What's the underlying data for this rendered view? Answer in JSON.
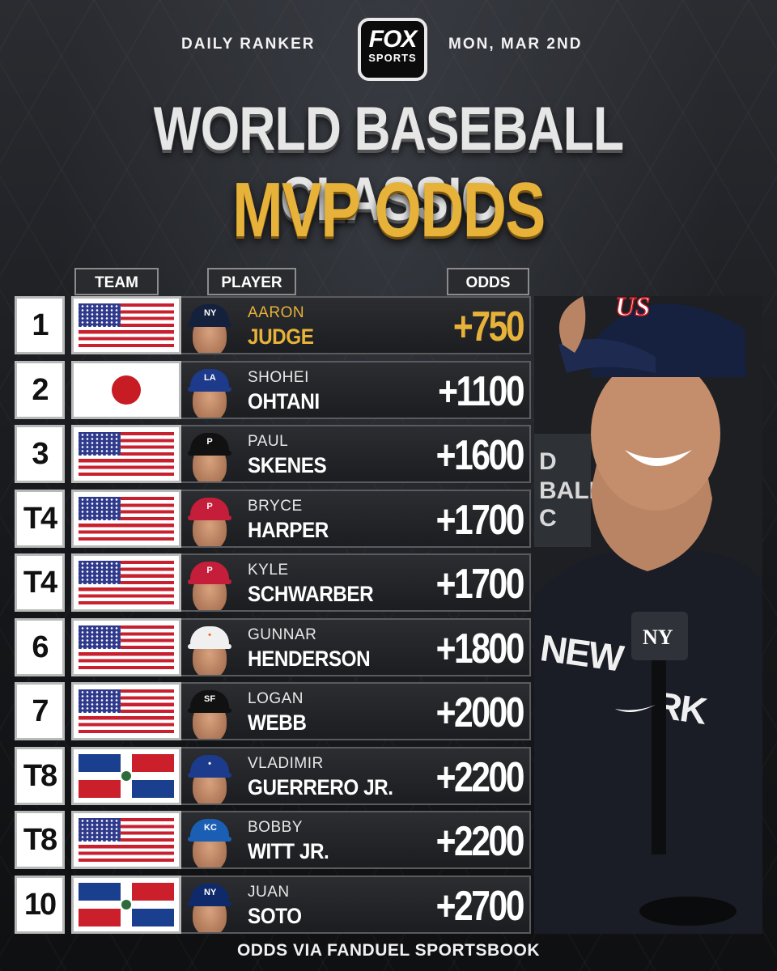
{
  "header": {
    "left_label": "DAILY RANKER",
    "right_label": "MON, MAR 2ND",
    "logo_line1": "FOX",
    "logo_line2": "SPORTS"
  },
  "title": {
    "line1": "WORLD BASEBALL CLASSIC",
    "line2": "MVP ODDS"
  },
  "columns": {
    "team": "TEAM",
    "player": "PLAYER",
    "odds": "ODDS"
  },
  "rankings": [
    {
      "rank": "1",
      "country": "usa",
      "first": "AARON",
      "last": "JUDGE",
      "odds": "+750",
      "cap_color": "#14213d",
      "cap_mark": "NY"
    },
    {
      "rank": "2",
      "country": "japan",
      "first": "SHOHEI",
      "last": "OHTANI",
      "odds": "+1100",
      "cap_color": "#1e3a8a",
      "cap_mark": "LA"
    },
    {
      "rank": "3",
      "country": "usa",
      "first": "PAUL",
      "last": "SKENES",
      "odds": "+1600",
      "cap_color": "#111111",
      "cap_mark": "P"
    },
    {
      "rank": "T4",
      "country": "usa",
      "first": "BRYCE",
      "last": "HARPER",
      "odds": "+1700",
      "cap_color": "#c41e3a",
      "cap_mark": "P"
    },
    {
      "rank": "T4",
      "country": "usa",
      "first": "KYLE",
      "last": "SCHWARBER",
      "odds": "+1700",
      "cap_color": "#c41e3a",
      "cap_mark": "P"
    },
    {
      "rank": "6",
      "country": "usa",
      "first": "GUNNAR",
      "last": "HENDERSON",
      "odds": "+1800",
      "cap_color": "#f0f0f0",
      "cap_mark": "•"
    },
    {
      "rank": "7",
      "country": "usa",
      "first": "LOGAN",
      "last": "WEBB",
      "odds": "+2000",
      "cap_color": "#111111",
      "cap_mark": "SF"
    },
    {
      "rank": "T8",
      "country": "dominican",
      "first": "VLADIMIR",
      "last": "GUERRERO JR.",
      "odds": "+2200",
      "cap_color": "#1d3b8c",
      "cap_mark": "•"
    },
    {
      "rank": "T8",
      "country": "usa",
      "first": "BOBBY",
      "last": "WITT JR.",
      "odds": "+2200",
      "cap_color": "#1b5fb5",
      "cap_mark": "KC"
    },
    {
      "rank": "10",
      "country": "dominican",
      "first": "JUAN",
      "last": "SOTO",
      "odds": "+2700",
      "cap_color": "#0f2a6b",
      "cap_mark": "NY"
    }
  ],
  "photo": {
    "jersey_text": "NEW YORK",
    "cap_logo": "US"
  },
  "footer": "ODDS VIA FANDUEL SPORTSBOOK",
  "colors": {
    "gold": "#e7b23a",
    "background": "#1a1c20"
  }
}
